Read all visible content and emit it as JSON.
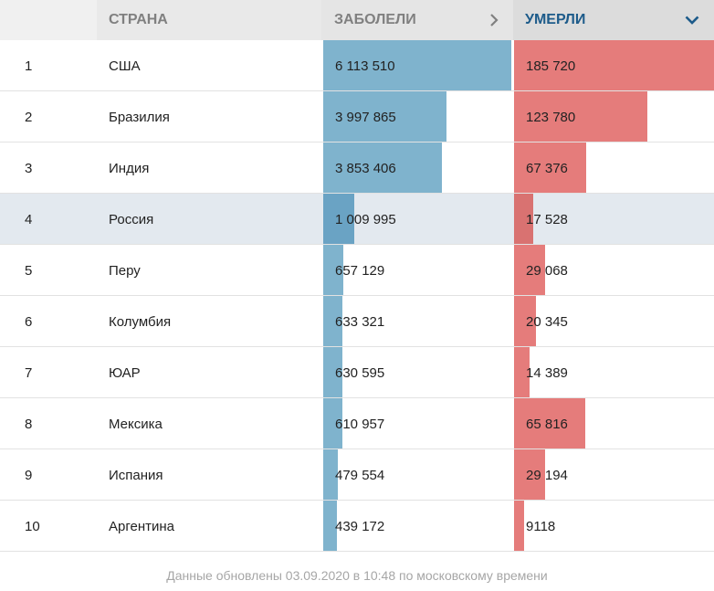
{
  "header": {
    "rank_label": "",
    "country_label": "Страна",
    "cases_label": "Заболели",
    "deaths_label": "Умерли",
    "cases_icon": "chevron-right-icon",
    "deaths_icon": "chevron-down-icon",
    "active_sort_color": "#1d5b8a"
  },
  "colors": {
    "cases_bar": "#7fb3cd",
    "deaths_bar": "#e57c7b",
    "highlight_row": "#e3e9ef"
  },
  "scale": {
    "cases_max": 6113510,
    "deaths_max": 185720
  },
  "rows": [
    {
      "rank": "1",
      "country": "США",
      "cases": "6 113 510",
      "deaths": "185 720",
      "cases_value": 6113510,
      "deaths_value": 185720,
      "highlight": false
    },
    {
      "rank": "2",
      "country": "Бразилия",
      "cases": "3 997 865",
      "deaths": "123 780",
      "cases_value": 3997865,
      "deaths_value": 123780,
      "highlight": false
    },
    {
      "rank": "3",
      "country": "Индия",
      "cases": "3 853 406",
      "deaths": "67 376",
      "cases_value": 3853406,
      "deaths_value": 67376,
      "highlight": false
    },
    {
      "rank": "4",
      "country": "Россия",
      "cases": "1 009 995",
      "deaths": "17 528",
      "cases_value": 1009995,
      "deaths_value": 17528,
      "highlight": true
    },
    {
      "rank": "5",
      "country": "Перу",
      "cases": "657 129",
      "deaths": "29 068",
      "cases_value": 657129,
      "deaths_value": 29068,
      "highlight": false
    },
    {
      "rank": "6",
      "country": "Колумбия",
      "cases": "633 321",
      "deaths": "20 345",
      "cases_value": 633321,
      "deaths_value": 20345,
      "highlight": false
    },
    {
      "rank": "7",
      "country": "ЮАР",
      "cases": "630 595",
      "deaths": "14 389",
      "cases_value": 630595,
      "deaths_value": 14389,
      "highlight": false
    },
    {
      "rank": "8",
      "country": "Мексика",
      "cases": "610 957",
      "deaths": "65 816",
      "cases_value": 610957,
      "deaths_value": 65816,
      "highlight": false
    },
    {
      "rank": "9",
      "country": "Испания",
      "cases": "479 554",
      "deaths": "29 194",
      "cases_value": 479554,
      "deaths_value": 29194,
      "highlight": false
    },
    {
      "rank": "10",
      "country": "Аргентина",
      "cases": "439 172",
      "deaths": "9118",
      "cases_value": 439172,
      "deaths_value": 9118,
      "highlight": false
    }
  ],
  "footer": {
    "text": "Данные обновлены 03.09.2020 в 10:48 по московскому времени"
  }
}
